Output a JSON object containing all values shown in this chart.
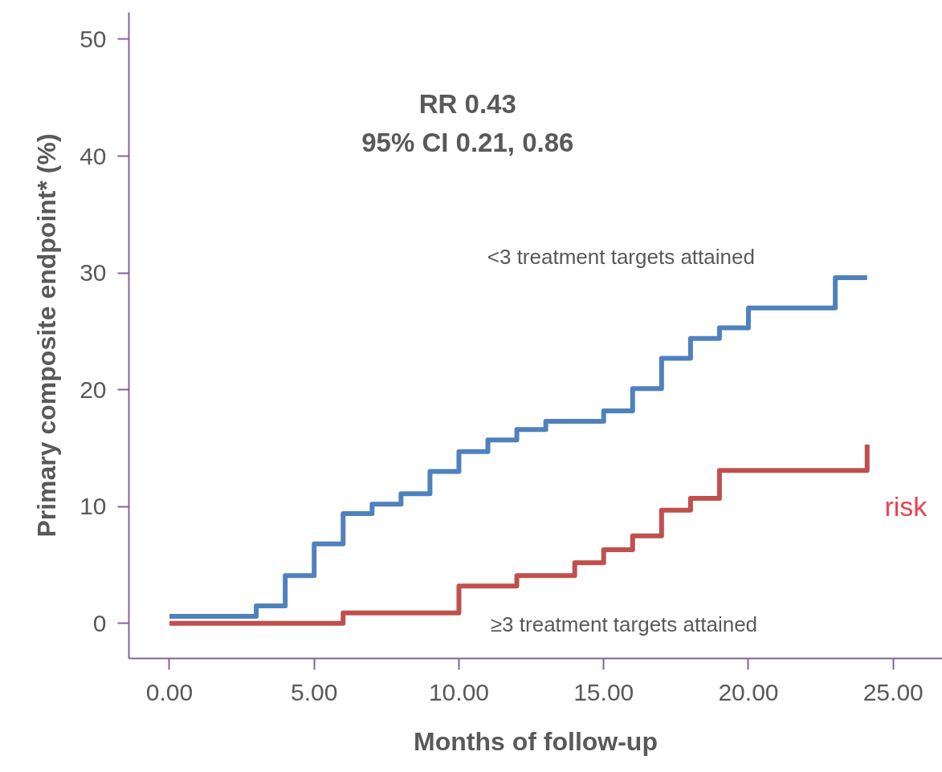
{
  "chart_data": {
    "type": "step",
    "xlabel": "Months of follow-up",
    "ylabel": "Primary composite endpoint* (%)",
    "xlim": [
      -1.4,
      26.7
    ],
    "ylim": [
      -3,
      52.3
    ],
    "xticks": [
      {
        "value": 0,
        "label": "0.00"
      },
      {
        "value": 5,
        "label": "5.00"
      },
      {
        "value": 10,
        "label": "10.00"
      },
      {
        "value": 15,
        "label": "15.00"
      },
      {
        "value": 20,
        "label": "20.00"
      },
      {
        "value": 25,
        "label": "25.00"
      }
    ],
    "yticks": [
      0,
      10,
      20,
      30,
      40,
      50
    ],
    "grid": false,
    "line_style": "solid",
    "series": [
      {
        "name": "<3 treatment targets attained",
        "color": "#4f81bd",
        "x": [
          0,
          3,
          4,
          5,
          6,
          7,
          8,
          9,
          10,
          11,
          12,
          13,
          15,
          16,
          17,
          18,
          19,
          20,
          23,
          24.1
        ],
        "values": [
          0.6,
          1.5,
          4.1,
          6.8,
          9.4,
          10.2,
          11.1,
          13.0,
          14.7,
          15.7,
          16.6,
          17.3,
          18.2,
          20.1,
          22.7,
          24.4,
          25.3,
          27.0,
          29.6,
          29.6
        ]
      },
      {
        "name": "≥3 treatment targets attained",
        "color": "#c0504d",
        "x": [
          0,
          6,
          10,
          12,
          14,
          15,
          16,
          17,
          18,
          19,
          24.1
        ],
        "values": [
          0,
          0.9,
          3.2,
          4.1,
          5.2,
          6.3,
          7.5,
          9.7,
          10.7,
          13.1,
          15.3
        ]
      }
    ],
    "annotations": [
      "RR 0.43\n95% CI 0.21, 0.86",
      "risk"
    ]
  }
}
